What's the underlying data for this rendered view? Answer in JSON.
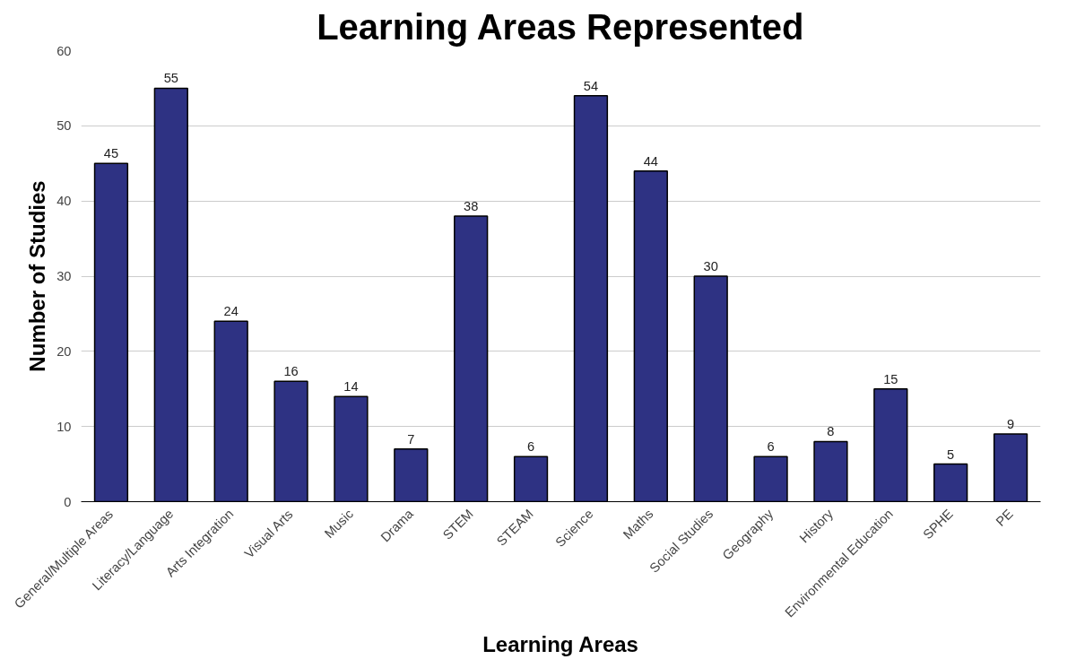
{
  "chart_data": {
    "type": "bar",
    "title": "Learning Areas Represented",
    "xlabel": "Learning Areas",
    "ylabel": "Number of Studies",
    "categories": [
      "General/Multiple Areas",
      "Literacy/Language",
      "Arts Integration",
      "Visual Arts",
      "Music",
      "Drama",
      "STEM",
      "STEAM",
      "Science",
      "Maths",
      "Social Studies",
      "Geography",
      "History",
      "Environmental Education",
      "SPHE",
      "PE"
    ],
    "values": [
      45,
      55,
      24,
      16,
      14,
      7,
      38,
      6,
      54,
      44,
      30,
      6,
      8,
      15,
      5,
      9
    ],
    "color": "#2e3283",
    "ylim": [
      0,
      60
    ],
    "yticks": [
      0,
      10,
      20,
      30,
      40,
      50,
      60
    ],
    "grid": "y",
    "data_labels": true
  }
}
